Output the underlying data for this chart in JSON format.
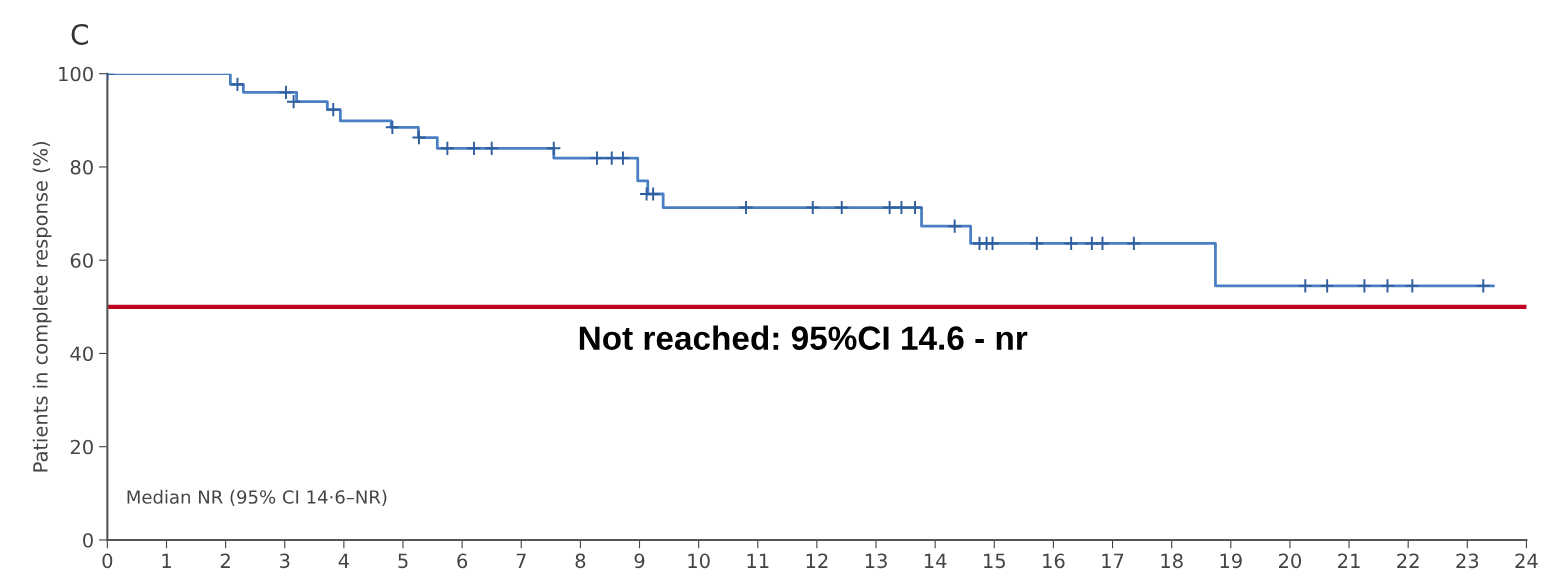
{
  "chart_data": {
    "type": "step",
    "title": "C",
    "ylabel": "Patients in complete response (%)",
    "annotations": [
      "Median NR (95% CI 14·6–NR)",
      "Not reached: 95%CI 14.6 - nr"
    ],
    "xlim": [
      0,
      24
    ],
    "xticks": [
      0,
      1,
      2,
      3,
      4,
      5,
      6,
      7,
      8,
      9,
      10,
      11,
      12,
      13,
      14,
      15,
      16,
      17,
      18,
      19,
      20,
      21,
      22,
      23,
      24
    ],
    "ylim": [
      0,
      100
    ],
    "yticks": [
      0,
      20,
      40,
      60,
      80,
      100
    ],
    "grid": false,
    "legend": false,
    "ref_lines": [
      {
        "axis": "y",
        "value": 50,
        "color": "#c00020",
        "line_style": "solid"
      }
    ],
    "series": [
      {
        "color": "#4a7fc4",
        "marker": "none",
        "x": [
          0,
          2.08,
          2.3,
          3.2,
          3.72,
          3.94,
          4.8,
          5.26,
          5.58,
          7.55,
          8.97,
          9.14,
          9.4,
          13.77,
          14.6,
          18.74,
          23.44
        ],
        "values": [
          100,
          97.7,
          96,
          94,
          92.3,
          89.9,
          88.5,
          86.3,
          84,
          81.9,
          77,
          74.2,
          71.3,
          67.3,
          63.6,
          54.5,
          54.5
        ]
      },
      {
        "type": "scatter",
        "color": "#2f5f9e",
        "marker": "cross",
        "x": [
          0,
          2.2,
          3.02,
          3.15,
          3.82,
          4.82,
          5.27,
          5.75,
          6.2,
          6.5,
          7.55,
          8.28,
          8.53,
          8.72,
          9.12,
          9.23,
          10.8,
          11.93,
          12.42,
          13.23,
          13.43,
          13.66,
          14.33,
          14.75,
          14.87,
          14.97,
          15.72,
          16.3,
          16.65,
          16.83,
          17.36,
          20.26,
          20.63,
          21.26,
          21.65,
          22.07,
          23.27
        ],
        "values": [
          100,
          97.7,
          96,
          94,
          92.3,
          88.5,
          86.3,
          84,
          84,
          84,
          84,
          81.9,
          81.9,
          81.9,
          74.2,
          74.2,
          71.3,
          71.3,
          71.3,
          71.3,
          71.3,
          71.3,
          67.3,
          63.6,
          63.6,
          63.6,
          63.6,
          63.6,
          63.6,
          63.6,
          63.6,
          54.5,
          54.5,
          54.5,
          54.5,
          54.5,
          54.5
        ]
      }
    ]
  }
}
